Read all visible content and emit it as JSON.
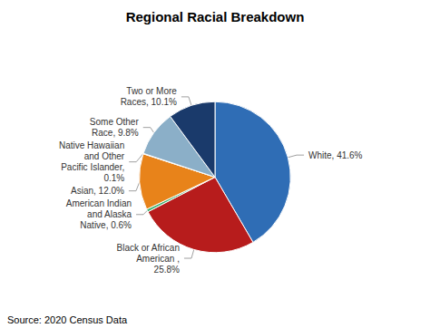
{
  "chart_data": {
    "type": "pie",
    "title": "Regional Racial Breakdown",
    "categories": [
      "White, 41.6%",
      "Black or African\nAmerican ,\n25.8%",
      "American Indian\nand Alaska\nNative, 0.6%",
      "Asian, 12.0%",
      "Native Hawaiian\nand Other\nPacific Islander,\n0.1%",
      "Some Other\nRace, 9.8%",
      "Two or More\nRaces, 10.1%"
    ],
    "values": [
      41.6,
      25.8,
      0.6,
      12.0,
      0.1,
      9.8,
      10.1
    ],
    "colors": [
      "#2F6DB5",
      "#B71C1C",
      "#3CB371",
      "#E8831A",
      "#B0C8E0",
      "#8BAFC8",
      "#1A3A6B"
    ],
    "annotations": [
      "Source: 2020 Census Data"
    ]
  }
}
